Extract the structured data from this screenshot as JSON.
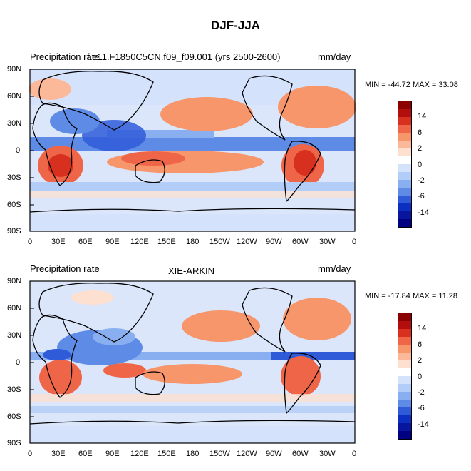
{
  "figure_title": "DJF-JJA",
  "panels": [
    {
      "left_title": "Precipitation rate",
      "center_title": "f.e11.F1850C5CN.f09_f09.001 (yrs 2500-2600)",
      "right_title": "mm/day",
      "minmax": "MIN = -44.72 MAX =  33.08"
    },
    {
      "left_title": "Precipitation rate",
      "center_title": "XIE-ARKIN",
      "right_title": "mm/day",
      "minmax": "MIN = -17.84 MAX =  11.28"
    }
  ],
  "lat_labels": [
    "90N",
    "60N",
    "30N",
    "0",
    "30S",
    "60S",
    "90S"
  ],
  "lon_labels": [
    "0",
    "30E",
    "60E",
    "90E",
    "120E",
    "150E",
    "180",
    "150W",
    "120W",
    "90W",
    "60W",
    "30W",
    "0"
  ],
  "colorbar_labels": [
    "14",
    "6",
    "2",
    "0",
    "-2",
    "-6",
    "-14"
  ],
  "colorbar_colors": [
    "#8b0000",
    "#b30e0e",
    "#d7301f",
    "#ef6548",
    "#f7956b",
    "#fbb99a",
    "#fde0cf",
    "#ffffff",
    "#d4e2fb",
    "#b2cdf7",
    "#89aff0",
    "#5d8be6",
    "#2f5bd9",
    "#0d2fbf",
    "#08169e",
    "#000080"
  ]
}
